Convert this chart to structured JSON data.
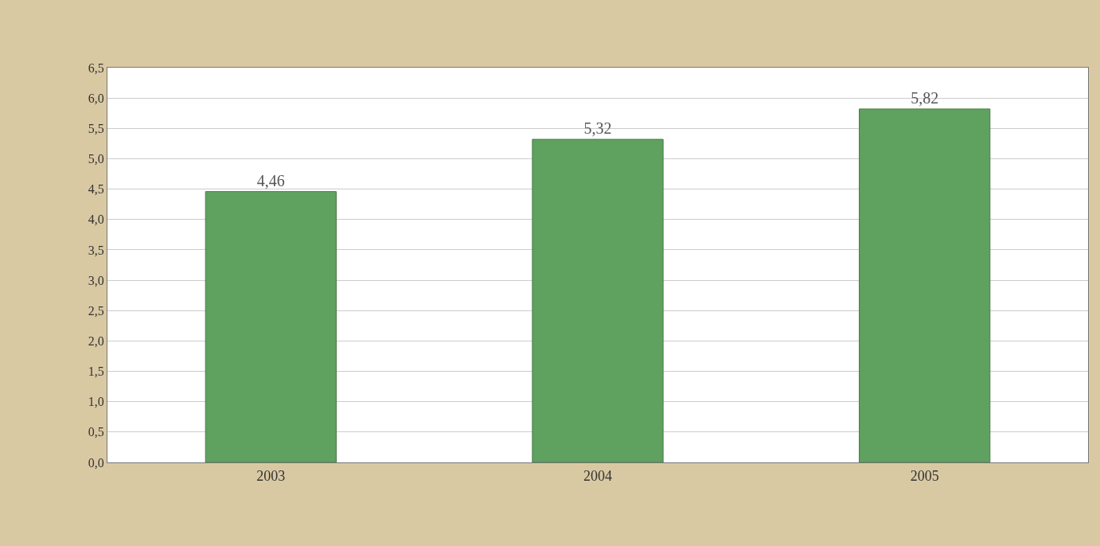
{
  "chart_data": {
    "type": "bar",
    "categories": [
      "2003",
      "2004",
      "2005"
    ],
    "values": [
      4.46,
      5.32,
      5.82
    ],
    "color": "#5fa15f",
    "value_labels": [
      "4,46",
      "5,32",
      "5,82"
    ],
    "ylim": [
      0,
      6.5
    ],
    "yticks": [
      {
        "value": 0,
        "label": "0,0"
      },
      {
        "value": 0.5,
        "label": "0,5"
      },
      {
        "value": 1,
        "label": "1,0"
      },
      {
        "value": 1.5,
        "label": "1,5"
      },
      {
        "value": 2,
        "label": "2,0"
      },
      {
        "value": 2.5,
        "label": "2,5"
      },
      {
        "value": 3,
        "label": "3,0"
      },
      {
        "value": 3.5,
        "label": "3,5"
      },
      {
        "value": 4,
        "label": "4,0"
      },
      {
        "value": 4.5,
        "label": "4,5"
      },
      {
        "value": 5,
        "label": "5,0"
      },
      {
        "value": 5.5,
        "label": "5,5"
      },
      {
        "value": 6,
        "label": "6,0"
      },
      {
        "value": 6.5,
        "label": "6,5"
      }
    ],
    "grid": "y"
  }
}
